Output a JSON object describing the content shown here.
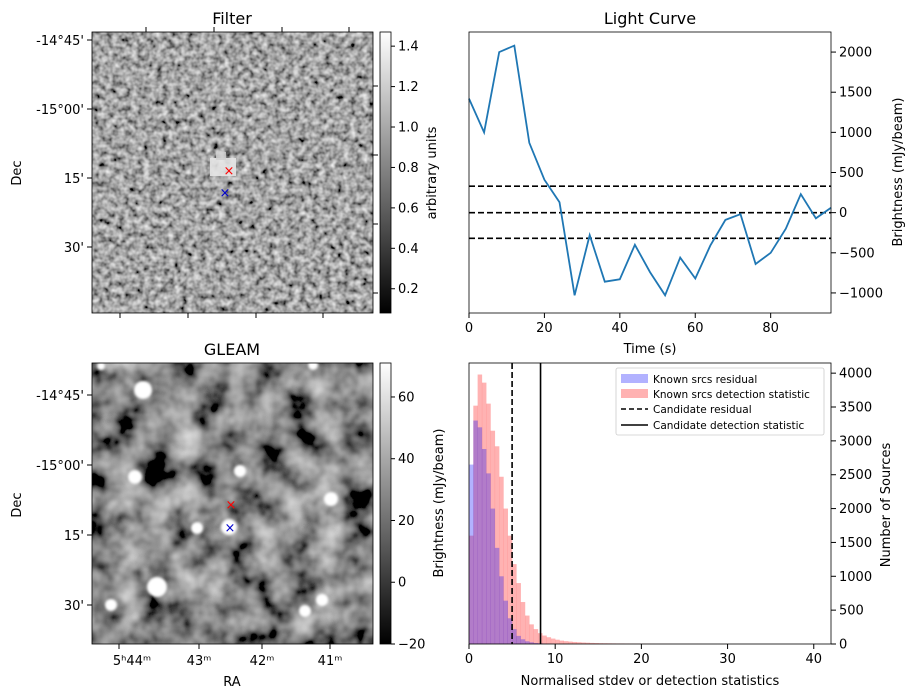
{
  "panels": {
    "filter": {
      "title": "Filter",
      "ylabel": "Dec",
      "dec_ticks": [
        "-14°45'",
        "-15°00'",
        "15'",
        "30'"
      ],
      "colorbar": {
        "label": "arbitrary units",
        "range": [
          0.08,
          1.47
        ],
        "ticks": [
          "0.2",
          "0.4",
          "0.6",
          "0.8",
          "1.0",
          "1.2",
          "1.4"
        ],
        "tick_values": [
          0.2,
          0.4,
          0.6,
          0.8,
          1.0,
          1.2,
          1.4
        ]
      },
      "markers": [
        {
          "symbol": "x",
          "color": "#ff0000"
        },
        {
          "symbol": "x",
          "color": "#0000cc"
        }
      ]
    },
    "gleam": {
      "title": "GLEAM",
      "ylabel": "Dec",
      "xlabel": "RA",
      "dec_ticks": [
        "-14°45'",
        "-15°00'",
        "15'",
        "30'"
      ],
      "ra_ticks": [
        "5ʰ44ᵐ",
        "43ᵐ",
        "42ᵐ",
        "41ᵐ"
      ],
      "colorbar": {
        "label": "Brightness (mJy/beam)",
        "range": [
          -20,
          71
        ],
        "ticks": [
          "−20",
          "0",
          "20",
          "40",
          "60"
        ],
        "tick_values": [
          -20,
          0,
          20,
          40,
          60
        ]
      },
      "markers": [
        {
          "symbol": "x",
          "color": "#ff0000"
        },
        {
          "symbol": "x",
          "color": "#0000cc"
        }
      ]
    }
  },
  "chart_data": [
    {
      "type": "line",
      "title": "Light Curve",
      "xlabel": "Time (s)",
      "ylabel": "Brightness (mJy/beam)",
      "xlim": [
        0,
        96
      ],
      "ylim": [
        -1250,
        2250
      ],
      "x_ticks": [
        0,
        20,
        40,
        60,
        80
      ],
      "y_ticks": [
        -1000,
        -500,
        0,
        500,
        1000,
        1500,
        2000
      ],
      "x_tick_labels": [
        "0",
        "20",
        "40",
        "60",
        "80"
      ],
      "y_tick_labels": [
        "−1000",
        "−500",
        "0",
        "500",
        "1000",
        "1500",
        "2000"
      ],
      "series": [
        {
          "color": "#1f77b4",
          "x": [
            0,
            4,
            8,
            12,
            16,
            20,
            24,
            28,
            32,
            36,
            40,
            44,
            48,
            52,
            56,
            60,
            64,
            68,
            72,
            76,
            80,
            84,
            88,
            92,
            96
          ],
          "y": [
            1420,
            1000,
            2000,
            2080,
            870,
            410,
            130,
            -1030,
            -280,
            -860,
            -830,
            -400,
            -740,
            -1030,
            -560,
            -820,
            -410,
            -90,
            -20,
            -640,
            -500,
            -200,
            230,
            -70,
            60
          ]
        }
      ],
      "hlines": [
        {
          "y": 330,
          "style": "dashed",
          "color": "#000000"
        },
        {
          "y": 0,
          "style": "dashed",
          "color": "#000000"
        },
        {
          "y": -320,
          "style": "dashed",
          "color": "#000000"
        }
      ],
      "grid": false
    },
    {
      "type": "histogram",
      "xlabel": "Normalised stdev or detection statistics",
      "ylabel": "Number of Sources",
      "xlim": [
        0,
        42
      ],
      "ylim": [
        0,
        4150
      ],
      "x_ticks": [
        0,
        10,
        20,
        30,
        40
      ],
      "y_ticks": [
        0,
        500,
        1000,
        1500,
        2000,
        2500,
        3000,
        3500,
        4000
      ],
      "x_tick_labels": [
        "0",
        "10",
        "20",
        "30",
        "40"
      ],
      "y_tick_labels": [
        "0",
        "500",
        "1000",
        "1500",
        "2000",
        "2500",
        "3000",
        "3500",
        "4000"
      ],
      "bin_width": 0.5,
      "series": [
        {
          "name": "Known srcs residual",
          "color": "#0000ff",
          "alpha": 0.3,
          "bin_start": 0,
          "values": [
            2650,
            3300,
            3200,
            2880,
            2520,
            2000,
            1420,
            1000,
            640,
            380,
            220,
            120,
            70,
            40,
            25,
            15,
            10,
            6,
            4,
            2
          ]
        },
        {
          "name": "Known srcs detection statistic",
          "color": "#ff0000",
          "alpha": 0.3,
          "bin_start": 0,
          "values": [
            1600,
            3520,
            3980,
            3860,
            3550,
            3150,
            2920,
            2470,
            2000,
            1600,
            1180,
            900,
            620,
            420,
            290,
            220,
            160,
            125,
            100,
            80,
            64,
            50,
            42,
            36,
            30,
            26,
            22,
            19,
            16,
            14,
            12,
            11,
            10,
            9,
            8,
            8,
            7,
            6,
            6,
            5,
            5,
            4,
            4,
            3,
            3,
            3,
            3,
            2,
            2,
            2,
            2,
            2,
            2,
            2,
            1,
            1,
            1,
            1,
            1,
            1,
            1,
            1,
            1,
            1,
            1,
            1,
            1,
            1,
            1,
            1,
            1,
            1,
            1,
            1,
            1,
            1,
            1,
            1,
            1
          ]
        }
      ],
      "vlines": [
        {
          "name": "Candidate residual",
          "x": 5.0,
          "style": "dashed",
          "color": "#000000"
        },
        {
          "name": "Candidate detection statistic",
          "x": 8.3,
          "style": "solid",
          "color": "#000000"
        }
      ],
      "legend_placement": "top-right",
      "shared_left_label": "Brightness (mJy/beam)"
    }
  ]
}
